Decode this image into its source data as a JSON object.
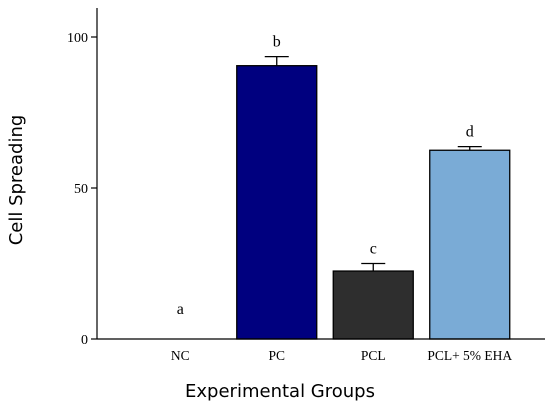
{
  "chart_data": {
    "type": "bar",
    "title": "",
    "xlabel": "Experimental Groups",
    "ylabel": "Cell Spreading",
    "ylim": [
      0,
      105
    ],
    "yticks": [
      0,
      50,
      100
    ],
    "categories": [
      "NC",
      "PC",
      "PCL",
      "PCL+ 5% EHA"
    ],
    "values": [
      0,
      90.5,
      22.5,
      62.5
    ],
    "errors": [
      0,
      3,
      2.5,
      1.2
    ],
    "significance_letters": [
      "a",
      "b",
      "c",
      "d"
    ],
    "colors": [
      "#ffffff",
      "#00007f",
      "#2e2e2e",
      "#7aabd6"
    ],
    "grid": false,
    "legend": "none"
  }
}
